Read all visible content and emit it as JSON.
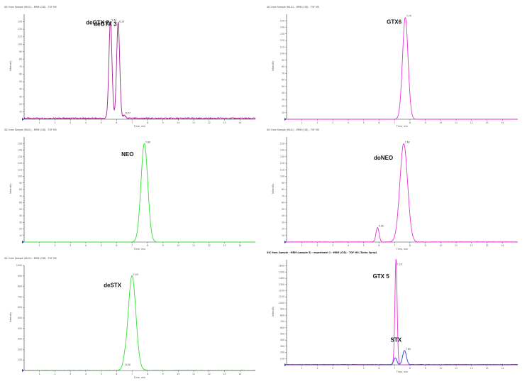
{
  "figure": {
    "header_text": "XIC from Sample (HILIC) - MRM (CID) - TOF MS",
    "header_text_bottom_right": "XIC from Sample - MRM (sample 5) - experiment 1 - MRM (CID) - TOF MS (Turbo Spray)",
    "y_axis_label": "Intensity",
    "x_axis_label": "Time, min"
  },
  "chart_data": [
    {
      "type": "line",
      "panel_id": "A",
      "color": "#a0208f",
      "xlim": [
        0,
        15
      ],
      "ylim": [
        0,
        140
      ],
      "xticks": [
        1,
        2,
        3,
        4,
        5,
        6,
        7,
        8,
        9,
        10,
        11,
        12,
        13,
        14
      ],
      "yticks": [
        10,
        20,
        30,
        40,
        50,
        60,
        70,
        80,
        90,
        100,
        110,
        120,
        130
      ],
      "peaks": [
        {
          "x": 5.6,
          "height": 130,
          "width": 0.1
        },
        {
          "x": 6.1,
          "height": 128,
          "width": 0.1
        },
        {
          "x": 6.5,
          "height": 4,
          "width": 0.08
        }
      ],
      "baseline": 1.2,
      "noise": 0.9,
      "labels": [
        {
          "text": "deGTX 2",
          "x": 5.6,
          "y": 130,
          "bold": true
        },
        {
          "text": "deGTX 3",
          "x": 6.1,
          "y": 128,
          "bold": true
        },
        {
          "text": "5.60",
          "x": 5.6,
          "y": 130,
          "bold": false
        },
        {
          "text": "6.10",
          "x": 6.1,
          "y": 128,
          "bold": false
        },
        {
          "text": "6.57",
          "x": 6.5,
          "y": 6,
          "bold": false
        }
      ]
    },
    {
      "type": "line",
      "panel_id": "B",
      "color": "#e633d6",
      "xlim": [
        0,
        15
      ],
      "ylim": [
        0,
        160
      ],
      "xticks": [
        1,
        2,
        3,
        4,
        5,
        6,
        7,
        8,
        9,
        10,
        11,
        12,
        13,
        14
      ],
      "yticks": [
        10,
        20,
        30,
        40,
        50,
        60,
        70,
        80,
        90,
        100,
        110,
        120,
        130,
        140,
        150
      ],
      "peaks": [
        {
          "x": 7.7,
          "height": 155,
          "width": 0.18
        }
      ],
      "baseline": 0,
      "noise": 0,
      "labels": [
        {
          "text": "GTX6",
          "x": 7.55,
          "y": 150,
          "bold": true
        },
        {
          "text": "7.70",
          "x": 7.7,
          "y": 155,
          "bold": false
        }
      ]
    },
    {
      "type": "line",
      "panel_id": "C",
      "color": "#33e033",
      "xlim": [
        0,
        15
      ],
      "ylim": [
        0,
        160
      ],
      "xticks": [
        1,
        2,
        3,
        4,
        5,
        6,
        7,
        8,
        9,
        10,
        11,
        12,
        13,
        14
      ],
      "yticks": [
        10,
        20,
        30,
        40,
        50,
        60,
        70,
        80,
        90,
        100,
        110,
        120,
        130,
        140,
        150
      ],
      "peaks": [
        {
          "x": 7.8,
          "height": 150,
          "width": 0.22
        }
      ],
      "baseline": 0,
      "noise": 0,
      "labels": [
        {
          "text": "NEO",
          "x": 7.2,
          "y": 135,
          "bold": true
        },
        {
          "text": "7.80",
          "x": 7.8,
          "y": 150,
          "bold": false
        }
      ]
    },
    {
      "type": "line",
      "panel_id": "D",
      "color": "#e633d6",
      "xlim": [
        0,
        15
      ],
      "ylim": [
        0,
        160
      ],
      "xticks": [
        1,
        2,
        3,
        4,
        5,
        6,
        7,
        8,
        9,
        10,
        11,
        12,
        13,
        14
      ],
      "yticks": [
        10,
        20,
        30,
        40,
        50,
        60,
        70,
        80,
        90,
        100,
        110,
        120,
        130,
        140,
        150
      ],
      "peaks": [
        {
          "x": 5.9,
          "height": 22,
          "width": 0.1
        },
        {
          "x": 7.6,
          "height": 150,
          "width": 0.25
        }
      ],
      "baseline": 0,
      "noise": 0.5,
      "labels": [
        {
          "text": "doNEO",
          "x": 7.0,
          "y": 130,
          "bold": true
        },
        {
          "text": "5.92",
          "x": 5.9,
          "y": 22,
          "bold": false
        },
        {
          "text": "7.62",
          "x": 7.6,
          "y": 150,
          "bold": false
        }
      ]
    },
    {
      "type": "line",
      "panel_id": "E",
      "color": "#33e033",
      "xlim": [
        0,
        15
      ],
      "ylim": [
        0,
        1000
      ],
      "xticks": [
        1,
        2,
        3,
        4,
        5,
        6,
        7,
        8,
        9,
        10,
        11,
        12,
        13,
        14
      ],
      "yticks": [
        100,
        200,
        300,
        400,
        500,
        600,
        700,
        800,
        900,
        1000
      ],
      "peaks": [
        {
          "x": 6.5,
          "height": 40,
          "width": 0.1
        },
        {
          "x": 7.0,
          "height": 900,
          "width": 0.25
        }
      ],
      "baseline": 3,
      "noise": 2,
      "labels": [
        {
          "text": "deSTX",
          "x": 6.4,
          "y": 820,
          "bold": true
        },
        {
          "text": "6.50",
          "x": 6.5,
          "y": 40,
          "bold": false
        },
        {
          "text": "7.03",
          "x": 7.0,
          "y": 900,
          "bold": false
        }
      ]
    },
    {
      "type": "line",
      "panel_id": "F",
      "xlim": [
        0,
        15
      ],
      "ylim": [
        0,
        1700
      ],
      "xticks": [
        1,
        2,
        3,
        4,
        5,
        6,
        7,
        8,
        9,
        10,
        11,
        12,
        13,
        14
      ],
      "yticks": [
        100,
        200,
        300,
        400,
        500,
        600,
        700,
        800,
        900,
        1000,
        1100,
        1200,
        1300,
        1400,
        1500,
        1600
      ],
      "series": [
        {
          "color": "#e633d6",
          "peaks": [
            {
              "x": 7.1,
              "height": 1600,
              "width": 0.07
            },
            {
              "x": 7.08,
              "height": 120,
              "width": 0.1
            }
          ],
          "baseline": 0,
          "noise": 0
        },
        {
          "color": "#2a3ad6",
          "peaks": [
            {
              "x": 7.05,
              "height": 110,
              "width": 0.1
            },
            {
              "x": 7.65,
              "height": 230,
              "width": 0.12
            }
          ],
          "baseline": 3,
          "noise": 3
        }
      ],
      "labels": [
        {
          "text": "GTX 5",
          "x": 6.75,
          "y": 1450,
          "bold": true
        },
        {
          "text": "STX",
          "x": 7.55,
          "y": 420,
          "bold": true
        },
        {
          "text": "7.10",
          "x": 7.1,
          "y": 1600,
          "bold": false
        },
        {
          "text": "7.65",
          "x": 7.65,
          "y": 230,
          "bold": false
        }
      ]
    }
  ]
}
